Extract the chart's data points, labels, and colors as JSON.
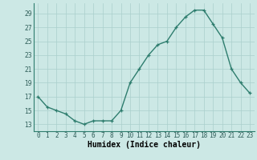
{
  "x": [
    0,
    1,
    2,
    3,
    4,
    5,
    6,
    7,
    8,
    9,
    10,
    11,
    12,
    13,
    14,
    15,
    16,
    17,
    18,
    19,
    20,
    21,
    22,
    23
  ],
  "y": [
    17,
    15.5,
    15,
    14.5,
    13.5,
    13,
    13.5,
    13.5,
    13.5,
    15,
    19,
    21,
    23,
    24.5,
    25,
    27,
    28.5,
    29.5,
    29.5,
    27.5,
    25.5,
    21,
    19,
    17.5
  ],
  "line_color": "#2e7d6e",
  "marker": "+",
  "marker_color": "#2e7d6e",
  "bg_color": "#cce8e5",
  "grid_color": "#aacfcc",
  "xlabel": "Humidex (Indice chaleur)",
  "xlim": [
    -0.5,
    23.5
  ],
  "ylim": [
    12,
    30.5
  ],
  "yticks": [
    13,
    15,
    17,
    19,
    21,
    23,
    25,
    27,
    29
  ],
  "xticks": [
    0,
    1,
    2,
    3,
    4,
    5,
    6,
    7,
    8,
    9,
    10,
    11,
    12,
    13,
    14,
    15,
    16,
    17,
    18,
    19,
    20,
    21,
    22,
    23
  ],
  "xtick_labels": [
    "0",
    "1",
    "2",
    "3",
    "4",
    "5",
    "6",
    "7",
    "8",
    "9",
    "10",
    "11",
    "12",
    "13",
    "14",
    "15",
    "16",
    "17",
    "18",
    "19",
    "20",
    "21",
    "22",
    "23"
  ],
  "tick_fontsize": 5.5,
  "xlabel_fontsize": 7,
  "linewidth": 1.0,
  "markersize": 3.5,
  "markeredgewidth": 0.9
}
